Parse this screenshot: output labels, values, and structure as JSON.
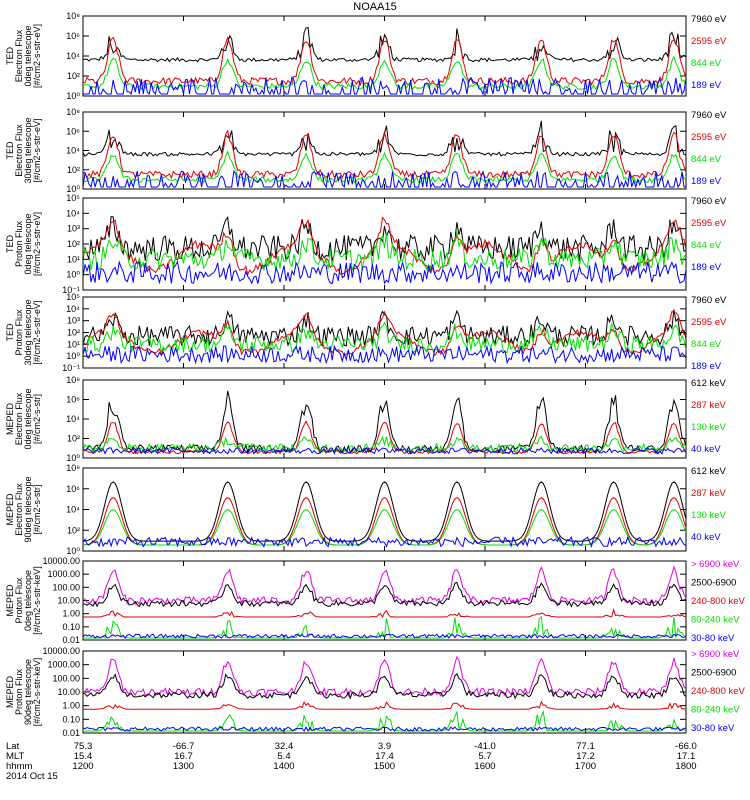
{
  "title": "NOAA15",
  "colors": {
    "black": "#000000",
    "red": "#e00000",
    "green": "#00e000",
    "blue": "#0000ff",
    "magenta": "#e000e0"
  },
  "chart_data": [
    {
      "type": "line",
      "ylabel": [
        "TED",
        "Electron Flux",
        "0deg telescope",
        "[#/cm2-s-str-eV]"
      ],
      "yticks": [
        "10⁰",
        "10²",
        "10⁴",
        "10⁶",
        "10⁸"
      ],
      "ylim": [
        1,
        100000000
      ],
      "log": true,
      "series": [
        {
          "name": "7960 eV",
          "color": "black"
        },
        {
          "name": "2595 eV",
          "color": "red"
        },
        {
          "name": "844 eV",
          "color": "green"
        },
        {
          "name": "189 eV",
          "color": "blue"
        }
      ]
    },
    {
      "type": "line",
      "ylabel": [
        "TED",
        "Electron Flux",
        "30deg telescope",
        "[#/cm2-s-str-eV]"
      ],
      "yticks": [
        "10⁰",
        "10²",
        "10⁴",
        "10⁶",
        "10⁸"
      ],
      "ylim": [
        1,
        100000000
      ],
      "log": true,
      "series": [
        {
          "name": "7960 eV",
          "color": "black"
        },
        {
          "name": "2595 eV",
          "color": "red"
        },
        {
          "name": "844 eV",
          "color": "green"
        },
        {
          "name": "189 eV",
          "color": "blue"
        }
      ]
    },
    {
      "type": "line",
      "ylabel": [
        "TED",
        "Proton Flux",
        "0deg telescope",
        "[#/cm2-s-str-eV]"
      ],
      "yticks": [
        "10⁻¹",
        "10⁰",
        "10¹",
        "10²",
        "10³",
        "10⁴",
        "10⁵"
      ],
      "ylim": [
        0.1,
        100000
      ],
      "log": true,
      "series": [
        {
          "name": "7960 eV",
          "color": "black"
        },
        {
          "name": "2595 eV",
          "color": "red"
        },
        {
          "name": "844 eV",
          "color": "green"
        },
        {
          "name": "189 eV",
          "color": "blue"
        }
      ]
    },
    {
      "type": "line",
      "ylabel": [
        "TED",
        "Proton Flux",
        "30deg telescope",
        "[#/cm2-s-str-eV]"
      ],
      "yticks": [
        "10⁻¹",
        "10⁰",
        "10¹",
        "10²",
        "10³",
        "10⁴",
        "10⁵"
      ],
      "ylim": [
        0.1,
        100000
      ],
      "log": true,
      "series": [
        {
          "name": "7960 eV",
          "color": "black"
        },
        {
          "name": "2595 eV",
          "color": "red"
        },
        {
          "name": "844 eV",
          "color": "green"
        },
        {
          "name": "189 eV",
          "color": "blue"
        }
      ]
    },
    {
      "type": "line",
      "ylabel": [
        "MEPED",
        "Electron Flux",
        "0deg telescope",
        "[#/cm2-s-str]"
      ],
      "yticks": [
        "10⁰",
        "10²",
        "10⁴",
        "10⁶",
        "10⁸"
      ],
      "ylim": [
        1,
        100000000
      ],
      "log": true,
      "series": [
        {
          "name": "612 keV",
          "color": "black"
        },
        {
          "name": "287 keV",
          "color": "red"
        },
        {
          "name": "130 keV",
          "color": "green"
        },
        {
          "name": "40 keV",
          "color": "blue"
        }
      ]
    },
    {
      "type": "line",
      "ylabel": [
        "MEPED",
        "Electron Flux",
        "90deg telescope",
        "[#/cm2-s-str]"
      ],
      "yticks": [
        "10⁰",
        "10²",
        "10⁴",
        "10⁶",
        "10⁸"
      ],
      "ylim": [
        1,
        100000000
      ],
      "log": true,
      "series": [
        {
          "name": "612 keV",
          "color": "black"
        },
        {
          "name": "287 keV",
          "color": "red"
        },
        {
          "name": "130 keV",
          "color": "green"
        },
        {
          "name": "40 keV",
          "color": "blue"
        }
      ]
    },
    {
      "type": "line",
      "ylabel": [
        "MEPED",
        "Proton Flux",
        "0deg telescope",
        "[#/cm2-s-str-keV]"
      ],
      "yticks": [
        "0.01",
        "0.10",
        "1.00",
        "10.00",
        "100.00",
        "1000.00",
        "10000.00"
      ],
      "ylim": [
        0.01,
        10000
      ],
      "log": true,
      "series": [
        {
          "name": "> 6900 keV",
          "color": "magenta"
        },
        {
          "name": "2500-6900",
          "color": "black"
        },
        {
          "name": "240-800 keV",
          "color": "red"
        },
        {
          "name": "80-240 keV",
          "color": "green"
        },
        {
          "name": "30-80 keV",
          "color": "blue"
        }
      ]
    },
    {
      "type": "line",
      "ylabel": [
        "MEPED",
        "Proton Flux",
        "90deg telescope",
        "[#/cm2-s-str-keV]"
      ],
      "yticks": [
        "0.01",
        "0.10",
        "1.00",
        "10.00",
        "100.00",
        "1000.00",
        "10000.00"
      ],
      "ylim": [
        0.01,
        10000
      ],
      "log": true,
      "series": [
        {
          "name": "> 6900 keV",
          "color": "magenta"
        },
        {
          "name": "2500-6900",
          "color": "black"
        },
        {
          "name": "240-800 keV",
          "color": "red"
        },
        {
          "name": "80-240 keV",
          "color": "green"
        },
        {
          "name": "30-80 keV",
          "color": "blue"
        }
      ]
    }
  ],
  "xaxis": {
    "rows": [
      {
        "label": "Lat",
        "values": [
          "75.3",
          "-66.7",
          "32.4",
          "3.9",
          "-41.0",
          "77.1",
          "-66.0"
        ]
      },
      {
        "label": "MLT",
        "values": [
          "15.4",
          "16.7",
          "5.4",
          "17.4",
          "5.7",
          "17.2",
          "17.1"
        ]
      },
      {
        "label": "hhmm",
        "values": [
          "1200",
          "1300",
          "1400",
          "1500",
          "1600",
          "1700",
          "1800"
        ]
      }
    ],
    "date": "2014 Oct 15"
  },
  "passes": [
    0.05,
    0.24,
    0.37,
    0.5,
    0.62,
    0.76,
    0.88,
    0.98
  ]
}
